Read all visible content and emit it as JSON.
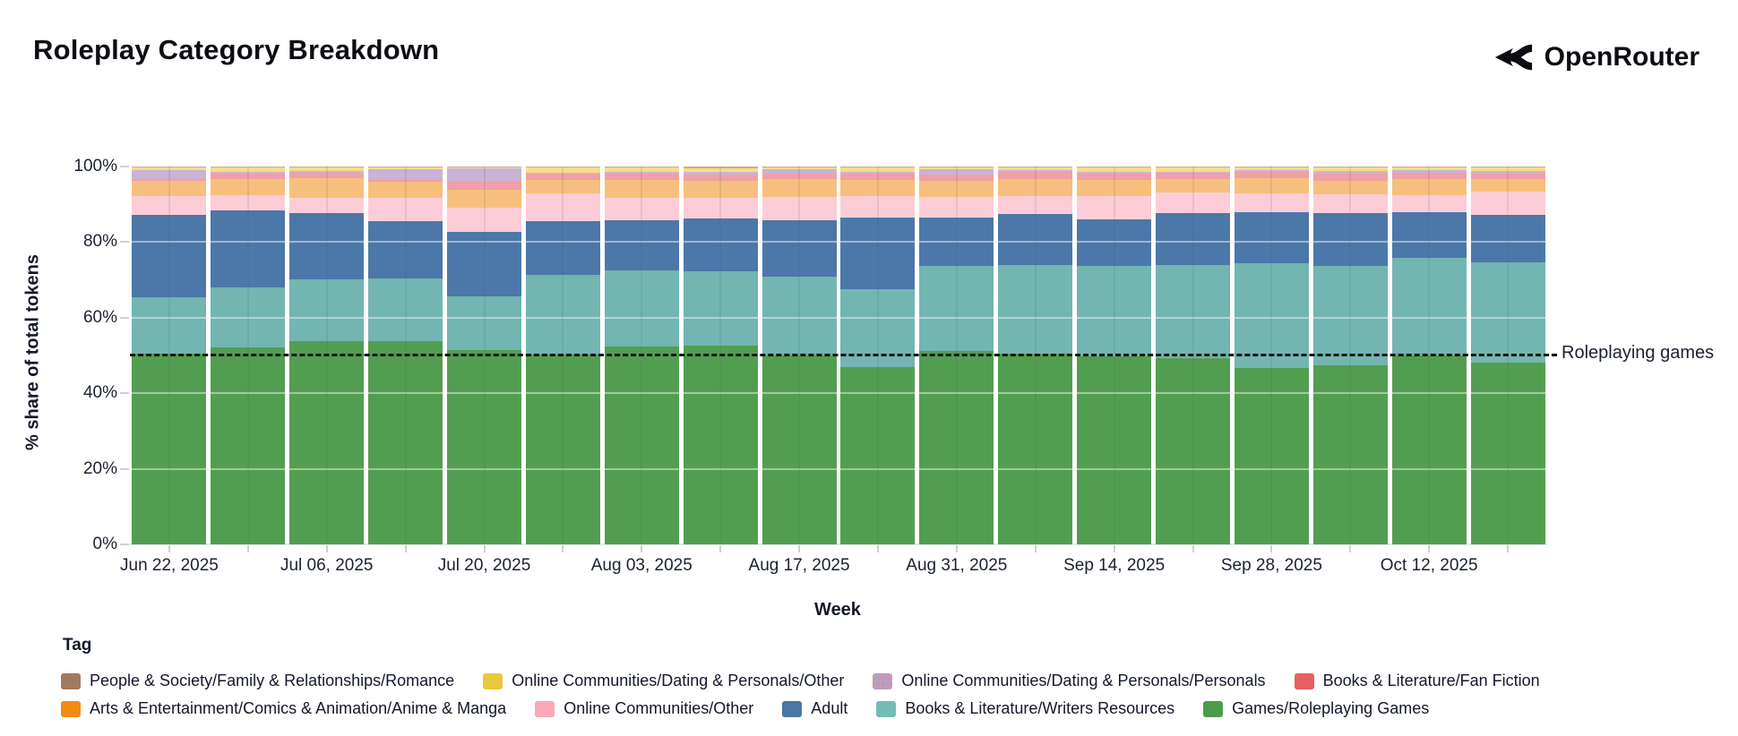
{
  "header": {
    "brand": "OpenRouter"
  },
  "chart_data": {
    "type": "bar",
    "subtype": "stacked-percent-weekly",
    "title": "Roleplay Category Breakdown",
    "xlabel": "Week",
    "ylabel": "% share of total tokens",
    "ylim": [
      0,
      100
    ],
    "y_tick_labels": [
      "0%",
      "20%",
      "40%",
      "60%",
      "80%",
      "100%"
    ],
    "x_tick_labels_visible": [
      "Jun 22, 2025",
      "Jul 06, 2025",
      "Jul 20, 2025",
      "Aug 03, 2025",
      "Aug 17, 2025",
      "Aug 31, 2025",
      "Sep 14, 2025",
      "Sep 28, 2025",
      "Oct 12, 2025"
    ],
    "categories": [
      "Jun 22, 2025",
      "Jun 29, 2025",
      "Jul 06, 2025",
      "Jul 13, 2025",
      "Jul 20, 2025",
      "Jul 27, 2025",
      "Aug 03, 2025",
      "Aug 10, 2025",
      "Aug 17, 2025",
      "Aug 24, 2025",
      "Aug 31, 2025",
      "Sep 07, 2025",
      "Sep 14, 2025",
      "Sep 21, 2025",
      "Sep 28, 2025",
      "Oct 05, 2025",
      "Oct 12, 2025",
      "Oct 19, 2025"
    ],
    "annotation": {
      "text": "Roleplaying games",
      "y": 50,
      "line_style": "dashed",
      "line_color": "#111318"
    },
    "legend_title": "Tag",
    "legend_rows": [
      [
        "People & Society/Family & Relationships/Romance",
        "Online Communities/Dating & Personals/Other",
        "Online Communities/Dating & Personals/Personals",
        "Books & Literature/Fan Fiction"
      ],
      [
        "Arts & Entertainment/Comics & Animation/Anime & Manga",
        "Online Communities/Other",
        "Adult",
        "Books & Literature/Writers Resources",
        "Games/Roleplaying Games"
      ]
    ],
    "series": [
      {
        "name": "Games/Roleplaying Games",
        "bar_color": "#529e50",
        "legend_color": "#4a9d4b",
        "dotted": false,
        "values": [
          50.4,
          52.1,
          53.8,
          53.7,
          51.5,
          50.3,
          52.4,
          52.5,
          50.0,
          46.9,
          51.2,
          50.4,
          49.8,
          49.2,
          46.7,
          47.5,
          50.0,
          48.2
        ]
      },
      {
        "name": "Books & Literature/Writers Resources",
        "bar_color": "#72b5b1",
        "legend_color": "#74bcb4",
        "dotted": false,
        "values": [
          15.1,
          15.9,
          16.3,
          16.6,
          14.2,
          21.1,
          20.0,
          19.7,
          20.9,
          20.6,
          22.4,
          23.6,
          24.0,
          24.8,
          27.7,
          26.1,
          25.8,
          26.4
        ]
      },
      {
        "name": "Adult",
        "bar_color": "#4c77a9",
        "legend_color": "#4a76a8",
        "dotted": false,
        "values": [
          21.8,
          20.3,
          17.5,
          15.3,
          17.1,
          14.2,
          13.3,
          14.0,
          14.8,
          19.1,
          13.0,
          13.4,
          12.3,
          13.6,
          13.6,
          14.0,
          12.2,
          12.6
        ]
      },
      {
        "name": "Online Communities/Other",
        "bar_color": "#fccdd6",
        "legend_color": "#f9a9b4",
        "dotted": false,
        "values": [
          5.0,
          4.1,
          4.0,
          6.2,
          6.4,
          7.2,
          6.0,
          5.5,
          6.2,
          5.5,
          5.3,
          4.7,
          6.0,
          5.5,
          4.9,
          5.1,
          4.4,
          6.1
        ]
      },
      {
        "name": "Arts & Entertainment/Comics & Animation/Anime & Manga",
        "bar_color": "#f7bf7d",
        "legend_color": "#f18b13",
        "dotted": false,
        "values": [
          4.0,
          4.2,
          5.4,
          4.2,
          4.6,
          3.6,
          4.7,
          4.6,
          4.7,
          4.3,
          4.3,
          4.6,
          4.3,
          3.7,
          4.0,
          3.6,
          4.4,
          3.3
        ]
      },
      {
        "name": "Books & Literature/Fan Fiction",
        "bar_color": "#f0a0a6",
        "legend_color": "#e66060",
        "dotted": false,
        "values": [
          0.4,
          1.5,
          1.3,
          0.5,
          2.1,
          1.6,
          1.7,
          1.5,
          1.4,
          1.8,
          1.6,
          1.8,
          1.8,
          1.8,
          1.6,
          1.8,
          1.6,
          1.6
        ]
      },
      {
        "name": "Online Communities/Dating & Personals/Personals",
        "bar_color": "#cab3d6",
        "legend_color": "#b59dc3",
        "dotted": true,
        "values": [
          2.3,
          0.4,
          0.5,
          2.8,
          3.7,
          0.4,
          0.4,
          0.8,
          1.2,
          0.4,
          1.4,
          0.5,
          0.5,
          0.1,
          0.5,
          0.7,
          0.6,
          0.6
        ]
      },
      {
        "name": "Online Communities/Dating & Personals/Other",
        "bar_color": "#f6dd85",
        "legend_color": "#e7c83e",
        "dotted": false,
        "values": [
          0.8,
          1.2,
          0.9,
          0.5,
          0.2,
          1.3,
          1.2,
          1.0,
          0.6,
          1.1,
          0.6,
          0.8,
          1.1,
          1.1,
          0.8,
          0.9,
          0.8,
          1.1
        ]
      },
      {
        "name": "People & Society/Family & Relationships/Romance",
        "bar_color": "#c9ab90",
        "legend_color": "#a1795e",
        "dotted": false,
        "values": [
          0.2,
          0.3,
          0.3,
          0.2,
          0.2,
          0.3,
          0.3,
          0.4,
          0.2,
          0.3,
          0.2,
          0.2,
          0.2,
          0.2,
          0.2,
          0.3,
          0.2,
          0.1
        ]
      }
    ]
  }
}
